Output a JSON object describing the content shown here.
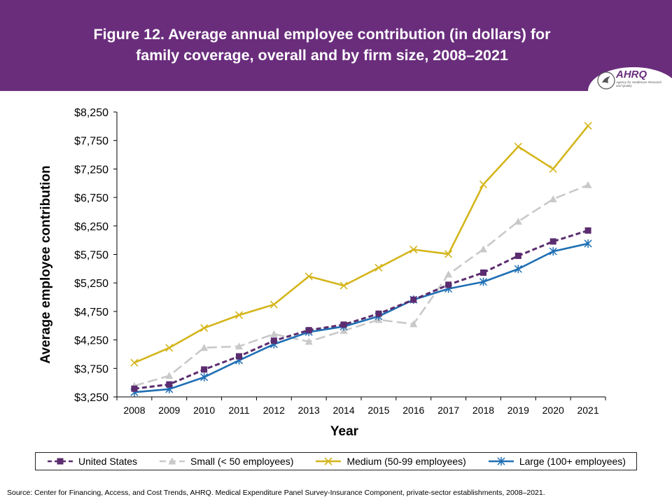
{
  "header": {
    "title": "Figure 12. Average annual employee contribution (in dollars) for\nfamily coverage, overall and by firm size, 2008–2021",
    "background_color": "#6a2d7c"
  },
  "logo": {
    "name": "AHRQ",
    "subtitle": "Agency for Healthcare Research and Quality"
  },
  "chart_data": {
    "type": "line",
    "xlabel": "Year",
    "ylabel": "Average employee contribution",
    "x": [
      2008,
      2009,
      2010,
      2011,
      2012,
      2013,
      2014,
      2015,
      2016,
      2017,
      2018,
      2019,
      2020,
      2021
    ],
    "ylim": [
      3250,
      8250
    ],
    "yticks": [
      3250,
      3750,
      4250,
      4750,
      5250,
      5750,
      6250,
      6750,
      7250,
      7750,
      8250
    ],
    "ytick_labels": [
      "$3,250",
      "$3,750",
      "$4,250",
      "$4,750",
      "$5,250",
      "$5,750",
      "$6,250",
      "$6,750",
      "$7,250",
      "$7,750",
      "$8,250"
    ],
    "grid": false,
    "legend_position": "bottom",
    "series": [
      {
        "name": "United States",
        "color": "#5b2c6f",
        "marker": "square",
        "dash": "dashed",
        "values": [
          3394,
          3469,
          3731,
          3962,
          4236,
          4421,
          4518,
          4710,
          4956,
          5218,
          5431,
          5726,
          5978,
          6170
        ]
      },
      {
        "name": "Small (< 50 employees)",
        "color": "#c9c9c9",
        "marker": "triangle",
        "dash": "longdash",
        "values": [
          3445,
          3621,
          4113,
          4137,
          4353,
          4220,
          4413,
          4603,
          4529,
          5400,
          5842,
          6329,
          6721,
          6970
        ]
      },
      {
        "name": "Medium (50-99 employees)",
        "color": "#d4b51a",
        "marker": "x",
        "dash": "solid",
        "values": [
          3850,
          4111,
          4459,
          4686,
          4871,
          5366,
          5203,
          5517,
          5836,
          5757,
          6979,
          7643,
          7251,
          8008
        ]
      },
      {
        "name": "Large (100+ employees)",
        "color": "#1f6fb4",
        "marker": "asterisk",
        "dash": "solid",
        "values": [
          3332,
          3386,
          3596,
          3891,
          4174,
          4389,
          4485,
          4664,
          4956,
          5148,
          5269,
          5495,
          5804,
          5941
        ]
      }
    ]
  },
  "footer": {
    "source": "Source: Center for Financing, Access, and Cost Trends, AHRQ. Medical Expenditure Panel Survey-Insurance Component, private-sector establishments, 2008–2021."
  }
}
